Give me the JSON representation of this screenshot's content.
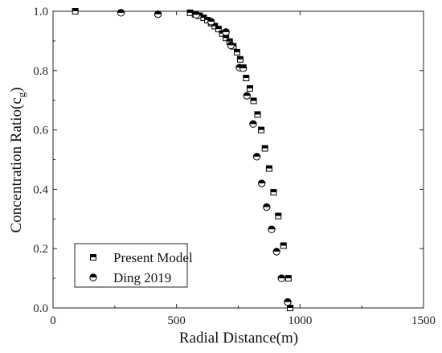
{
  "chart_data": {
    "type": "scatter",
    "xlabel": "Radial Distance(m)",
    "ylabel_main": "Concentration Ratio(c",
    "ylabel_sub": "g",
    "ylabel_close": ")",
    "xlim": [
      0,
      1500
    ],
    "ylim": [
      0,
      1.0
    ],
    "xticks": [
      "0",
      "500",
      "1000",
      "1500"
    ],
    "yticks": [
      "0.0",
      "0.2",
      "0.4",
      "0.6",
      "0.8",
      "1.0"
    ],
    "xtick_values": [
      0,
      500,
      1000,
      1500
    ],
    "ytick_values": [
      0.0,
      0.2,
      0.4,
      0.6,
      0.8,
      1.0
    ],
    "legend_placement": "bottom-left",
    "series": [
      {
        "name": "Present Model",
        "marker": "half-filled-square",
        "x": [
          90,
          555,
          575,
          593,
          610,
          625,
          640,
          655,
          670,
          685,
          700,
          715,
          730,
          745,
          758,
          770,
          782,
          797,
          812,
          828,
          843,
          858,
          875,
          893,
          912,
          933,
          953,
          960
        ],
        "y": [
          1.0,
          0.995,
          0.99,
          0.985,
          0.978,
          0.97,
          0.96,
          0.95,
          0.94,
          0.925,
          0.91,
          0.898,
          0.882,
          0.862,
          0.838,
          0.81,
          0.775,
          0.74,
          0.698,
          0.652,
          0.6,
          0.538,
          0.47,
          0.39,
          0.31,
          0.21,
          0.1,
          0.0
        ]
      },
      {
        "name": "Ding 2019",
        "marker": "half-filled-circle",
        "x": [
          275,
          425,
          580,
          640,
          700,
          720,
          755,
          770,
          785,
          810,
          825,
          845,
          865,
          885,
          905,
          925,
          950
        ],
        "y": [
          0.995,
          0.99,
          0.988,
          0.965,
          0.93,
          0.885,
          0.81,
          0.808,
          0.715,
          0.62,
          0.51,
          0.42,
          0.34,
          0.265,
          0.19,
          0.1,
          0.02
        ]
      }
    ]
  }
}
